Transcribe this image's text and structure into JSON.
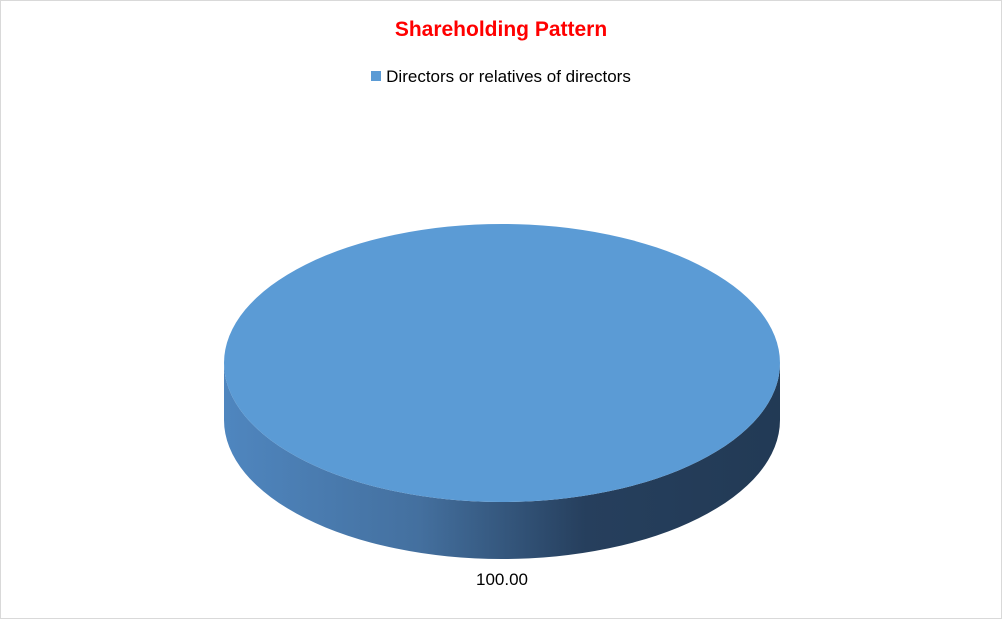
{
  "chart_data": {
    "type": "pie",
    "style": "3d",
    "title": "Shareholding Pattern",
    "title_color": "#ff0000",
    "legend_position": "top",
    "series": [
      {
        "name": "Directors or relatives of directors",
        "value": 100.0,
        "label": "100.00",
        "color": "#5b9bd5"
      }
    ]
  }
}
